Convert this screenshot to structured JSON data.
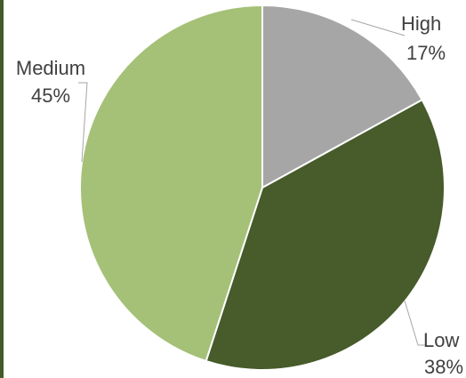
{
  "chart_data": {
    "type": "pie",
    "title": "",
    "categories": [
      "High",
      "Low",
      "Medium"
    ],
    "values": [
      17,
      38,
      45
    ],
    "labels": [
      "17%",
      "38%",
      "45%"
    ],
    "colors": [
      "#a6a6a6",
      "#475b2b",
      "#a4c177"
    ],
    "start_angle": "12 o'clock",
    "direction": "clockwise",
    "legend": "none (data labels with leader lines)"
  }
}
